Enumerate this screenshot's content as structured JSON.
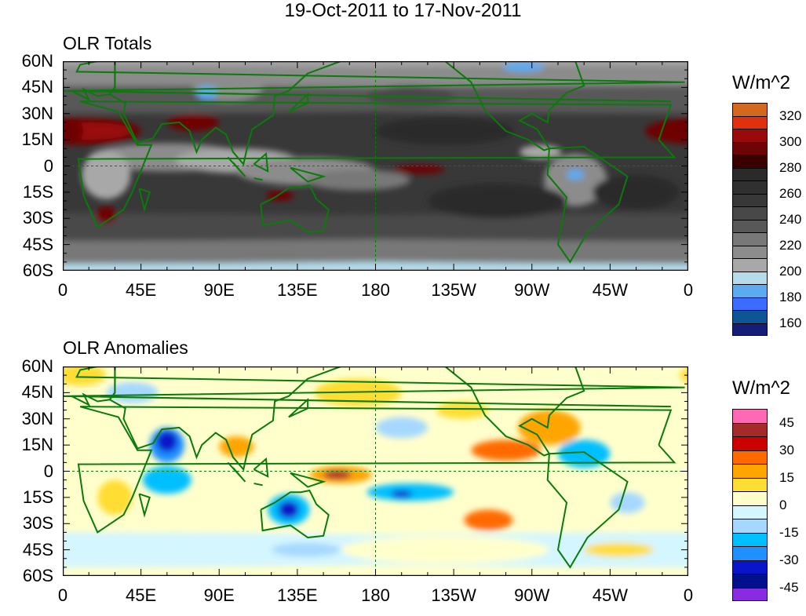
{
  "title": "19-Oct-2011 to 17-Nov-2011",
  "panels": [
    {
      "title": "OLR Totals",
      "units": "W/m^2",
      "colorbar_colors": [
        "#d2691e",
        "#e03010",
        "#9a0a0a",
        "#6e0505",
        "#3a0000",
        "#2a2a2a",
        "#303030",
        "#383838",
        "#484848",
        "#585858",
        "#787878",
        "#8c8c8c",
        "#a8a8a8",
        "#b4dcea",
        "#5caaf0",
        "#3c6cff",
        "#0f5596",
        "#141e78"
      ],
      "colorbar_labels": [
        "320",
        "300",
        "280",
        "260",
        "240",
        "220",
        "200",
        "180",
        "160"
      ]
    },
    {
      "title": "OLR Anomalies",
      "units": "W/m^2",
      "colorbar_colors": [
        "#ff69b4",
        "#a52a2a",
        "#cd0000",
        "#ff6a00",
        "#ffa500",
        "#ffdd33",
        "#ffffcc",
        "#d4f6ff",
        "#a6d8ff",
        "#00bfff",
        "#1e90ff",
        "#0a14c8",
        "#000f8c",
        "#8a2be2"
      ],
      "colorbar_labels": [
        "45",
        "30",
        "15",
        "0",
        "-15",
        "-30",
        "-45"
      ]
    }
  ],
  "lat_labels": [
    "60N",
    "45N",
    "30N",
    "15N",
    "0",
    "15S",
    "30S",
    "45S",
    "60S"
  ],
  "lon_labels": [
    "0",
    "45E",
    "90E",
    "135E",
    "180",
    "135W",
    "90W",
    "45W",
    "0"
  ]
}
